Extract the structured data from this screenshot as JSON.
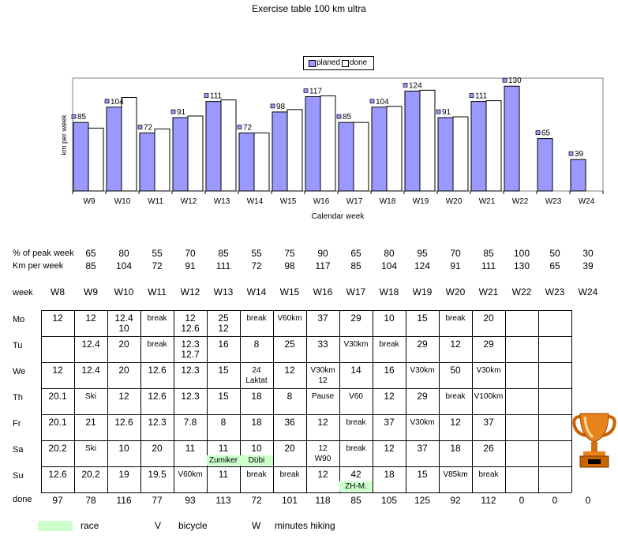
{
  "title": "Exercise table 100 km ultra",
  "chart_data": {
    "type": "bar",
    "title": "Exercise table 100 km ultra",
    "xlabel": "Calendar week",
    "ylabel": "km per week",
    "categories": [
      "W9",
      "W10",
      "W11",
      "W12",
      "W13",
      "W14",
      "W15",
      "W16",
      "W17",
      "W18",
      "W19",
      "W20",
      "W21",
      "W22",
      "W23",
      "W24"
    ],
    "series": [
      {
        "name": "planed",
        "values": [
          85,
          104,
          72,
          91,
          111,
          72,
          98,
          117,
          85,
          104,
          124,
          91,
          111,
          130,
          65,
          39
        ],
        "color": "#9999ff"
      },
      {
        "name": "done",
        "values": [
          78,
          116,
          77,
          93,
          113,
          72,
          101,
          118,
          85,
          105,
          125,
          92,
          112,
          0,
          0,
          0
        ],
        "color": "#ffffff"
      }
    ],
    "data_labels": [
      "85",
      "104",
      "72",
      "91",
      "111",
      "72",
      "98",
      "117",
      "85",
      "104",
      "124",
      "91",
      "111",
      "130",
      "65",
      "39"
    ],
    "ylim": [
      0,
      140
    ],
    "legend": "top-center",
    "grid": false
  },
  "table": {
    "labels": {
      "pct": "% of peak week",
      "km": "Km per week",
      "week": "week",
      "done": "done"
    },
    "pct_values": [
      "65",
      "80",
      "55",
      "70",
      "85",
      "55",
      "75",
      "90",
      "65",
      "80",
      "95",
      "70",
      "85",
      "100",
      "50",
      "30"
    ],
    "km_values": [
      "85",
      "104",
      "72",
      "91",
      "111",
      "72",
      "98",
      "117",
      "85",
      "104",
      "124",
      "91",
      "111",
      "130",
      "65",
      "39"
    ],
    "weeks": [
      "W8",
      "W9",
      "W10",
      "W11",
      "W12",
      "W13",
      "W14",
      "W15",
      "W16",
      "W17",
      "W18",
      "W19",
      "W20",
      "W21",
      "W22",
      "W23",
      "W24"
    ],
    "days": [
      "Mo",
      "Tu",
      "We",
      "Th",
      "Fr",
      "Sa",
      "Su"
    ],
    "rows": [
      [
        [
          "12",
          ""
        ],
        [
          "12",
          ""
        ],
        [
          "12.4",
          "10"
        ],
        [
          "break",
          ""
        ],
        [
          "12",
          "12.6"
        ],
        [
          "25",
          "12"
        ],
        [
          "break",
          ""
        ],
        [
          "V60km",
          ""
        ],
        [
          "37",
          ""
        ],
        [
          "29",
          ""
        ],
        [
          "10",
          ""
        ],
        [
          "15",
          ""
        ],
        [
          "break",
          ""
        ],
        [
          "20",
          ""
        ],
        [
          "",
          ""
        ],
        [
          "",
          ""
        ],
        [
          "",
          ""
        ]
      ],
      [
        [
          "",
          ""
        ],
        [
          "12.4",
          ""
        ],
        [
          "20",
          ""
        ],
        [
          "break",
          ""
        ],
        [
          "12.3",
          "12.7"
        ],
        [
          "16",
          ""
        ],
        [
          "8",
          ""
        ],
        [
          "25",
          ""
        ],
        [
          "33",
          ""
        ],
        [
          "V30km",
          ""
        ],
        [
          "break",
          ""
        ],
        [
          "29",
          ""
        ],
        [
          "12",
          ""
        ],
        [
          "29",
          ""
        ],
        [
          "",
          ""
        ],
        [
          "",
          ""
        ],
        [
          "",
          ""
        ]
      ],
      [
        [
          "12",
          ""
        ],
        [
          "12.4",
          ""
        ],
        [
          "20",
          ""
        ],
        [
          "12.6",
          ""
        ],
        [
          "12.3",
          ""
        ],
        [
          "15",
          ""
        ],
        [
          "24",
          "Laktat"
        ],
        [
          "12",
          ""
        ],
        [
          "V30km",
          "12"
        ],
        [
          "14",
          ""
        ],
        [
          "16",
          ""
        ],
        [
          "V30km",
          ""
        ],
        [
          "50",
          ""
        ],
        [
          "V30km",
          ""
        ],
        [
          "",
          ""
        ],
        [
          "",
          ""
        ],
        [
          "",
          ""
        ]
      ],
      [
        [
          "20.1",
          ""
        ],
        [
          "Ski",
          ""
        ],
        [
          "12",
          ""
        ],
        [
          "12.6",
          ""
        ],
        [
          "12.3",
          ""
        ],
        [
          "15",
          ""
        ],
        [
          "18",
          ""
        ],
        [
          "8",
          ""
        ],
        [
          "Pause",
          ""
        ],
        [
          "V60",
          ""
        ],
        [
          "12",
          ""
        ],
        [
          "29",
          ""
        ],
        [
          "break",
          ""
        ],
        [
          "V100km",
          ""
        ],
        [
          "",
          ""
        ],
        [
          "",
          ""
        ],
        [
          "",
          ""
        ]
      ],
      [
        [
          "20.1",
          ""
        ],
        [
          "21",
          ""
        ],
        [
          "12.6",
          ""
        ],
        [
          "12.3",
          ""
        ],
        [
          "7.8",
          ""
        ],
        [
          "8",
          ""
        ],
        [
          "18",
          ""
        ],
        [
          "36",
          ""
        ],
        [
          "12",
          ""
        ],
        [
          "break",
          ""
        ],
        [
          "37",
          ""
        ],
        [
          "V30km",
          ""
        ],
        [
          "12",
          ""
        ],
        [
          "37",
          ""
        ],
        [
          "",
          ""
        ],
        [
          "",
          ""
        ],
        [
          "",
          ""
        ]
      ],
      [
        [
          "20.2",
          ""
        ],
        [
          "Ski",
          ""
        ],
        [
          "10",
          ""
        ],
        [
          "20",
          ""
        ],
        [
          "11",
          ""
        ],
        [
          "11",
          "Zumiker"
        ],
        [
          "10",
          "Dübi"
        ],
        [
          "20",
          ""
        ],
        [
          "12",
          "W90"
        ],
        [
          "break",
          ""
        ],
        [
          "12",
          ""
        ],
        [
          "37",
          ""
        ],
        [
          "18",
          ""
        ],
        [
          "26",
          ""
        ],
        [
          "",
          ""
        ],
        [
          "",
          ""
        ],
        [
          "",
          ""
        ]
      ],
      [
        [
          "12.6",
          ""
        ],
        [
          "20.2",
          ""
        ],
        [
          "19",
          ""
        ],
        [
          "19.5",
          ""
        ],
        [
          "V60km",
          ""
        ],
        [
          "11",
          ""
        ],
        [
          "break",
          ""
        ],
        [
          "break",
          ""
        ],
        [
          "12",
          ""
        ],
        [
          "42",
          "ZH-M."
        ],
        [
          "18",
          ""
        ],
        [
          "15",
          ""
        ],
        [
          "V85km",
          ""
        ],
        [
          "break",
          ""
        ],
        [
          "",
          ""
        ],
        [
          "",
          ""
        ],
        [
          "",
          ""
        ]
      ]
    ],
    "done_values": [
      "97",
      "78",
      "116",
      "77",
      "93",
      "113",
      "72",
      "101",
      "118",
      "85",
      "105",
      "125",
      "92",
      "112",
      "0",
      "0",
      "0"
    ]
  },
  "legend": {
    "race": "race",
    "bicycle_letter": "V",
    "bicycle": "bicycle",
    "hiking_letter": "W",
    "hiking": "minutes hiking"
  }
}
